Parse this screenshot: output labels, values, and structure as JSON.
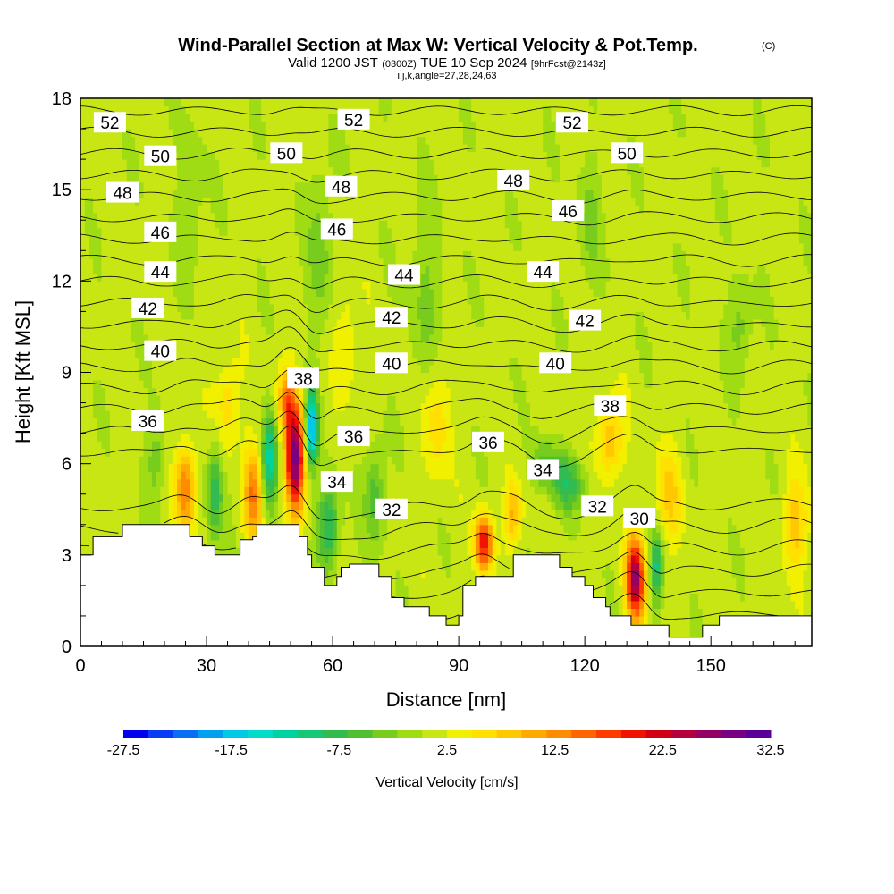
{
  "header": {
    "title": "Wind-Parallel Section at Max W: Vertical Velocity & Pot.Temp.",
    "copyright": "(C)",
    "valid_prefix": "Valid 1200 JST",
    "valid_z": "(0300Z)",
    "valid_date": "TUE 10 Sep 2024",
    "forecast": "[9hrFcst@2143z]",
    "indices": "i,j,k,angle=27,28,24,63"
  },
  "chart_data": {
    "type": "heatmap",
    "xlabel": "Distance [nm]",
    "ylabel": "Height [Kft MSL]",
    "xlim": [
      0,
      174
    ],
    "ylim": [
      0,
      18
    ],
    "x_ticks": [
      0,
      30,
      60,
      90,
      120,
      150
    ],
    "y_ticks": [
      0,
      3,
      6,
      9,
      12,
      15,
      18
    ],
    "x_tick_labels": [
      "0",
      "30",
      "60",
      "90",
      "120",
      "150"
    ],
    "y_tick_labels": [
      "0",
      "3",
      "6",
      "9",
      "12",
      "15",
      "18"
    ],
    "colorbar": {
      "title": "Vertical Velocity [cm/s]",
      "min": -27.5,
      "max": 32.5,
      "step": 2.5,
      "labels": [
        "-27.5",
        "-17.5",
        "-7.5",
        "2.5",
        "12.5",
        "22.5",
        "32.5"
      ],
      "colors": [
        "#0000ee",
        "#0a3cf5",
        "#0a6ef5",
        "#00a0f0",
        "#00c8e6",
        "#00dcc8",
        "#00d2a0",
        "#14c878",
        "#32bc50",
        "#50c032",
        "#78cc1e",
        "#a0dc14",
        "#c8e614",
        "#f0f000",
        "#ffe000",
        "#ffc800",
        "#ffaa00",
        "#ff8c00",
        "#ff6400",
        "#ff3c00",
        "#f01400",
        "#d20014",
        "#b4003c",
        "#960064",
        "#780082",
        "#5a0096"
      ]
    },
    "terrain": [
      [
        0,
        3
      ],
      [
        3,
        3
      ],
      [
        3,
        3.6
      ],
      [
        10,
        3.6
      ],
      [
        10,
        4
      ],
      [
        26,
        4
      ],
      [
        26,
        3.6
      ],
      [
        29,
        3.6
      ],
      [
        29,
        3.3
      ],
      [
        32,
        3.3
      ],
      [
        32,
        3
      ],
      [
        38,
        3
      ],
      [
        38,
        3.5
      ],
      [
        41,
        3.5
      ],
      [
        41,
        3.6
      ],
      [
        42,
        3.6
      ],
      [
        42,
        4
      ],
      [
        52,
        4
      ],
      [
        52,
        3.6
      ],
      [
        54,
        3.6
      ],
      [
        54,
        3
      ],
      [
        55,
        3
      ],
      [
        55,
        2.6
      ],
      [
        58,
        2.6
      ],
      [
        58,
        2
      ],
      [
        61,
        2
      ],
      [
        61,
        2.3
      ],
      [
        62,
        2.3
      ],
      [
        62,
        2.6
      ],
      [
        64,
        2.6
      ],
      [
        64,
        2.7
      ],
      [
        71,
        2.7
      ],
      [
        71,
        2.3
      ],
      [
        74,
        2.3
      ],
      [
        74,
        1.6
      ],
      [
        77,
        1.6
      ],
      [
        77,
        1.3
      ],
      [
        83,
        1.3
      ],
      [
        83,
        1
      ],
      [
        87,
        1
      ],
      [
        87,
        0.7
      ],
      [
        90,
        0.7
      ],
      [
        90,
        1
      ],
      [
        91,
        1
      ],
      [
        91,
        2
      ],
      [
        94,
        2
      ],
      [
        94,
        2.3
      ],
      [
        103,
        2.3
      ],
      [
        103,
        3
      ],
      [
        114,
        3
      ],
      [
        114,
        2.6
      ],
      [
        117,
        2.6
      ],
      [
        117,
        2.3
      ],
      [
        120,
        2.3
      ],
      [
        120,
        2
      ],
      [
        122,
        2
      ],
      [
        122,
        1.6
      ],
      [
        125,
        1.6
      ],
      [
        125,
        1.3
      ],
      [
        126,
        1.3
      ],
      [
        126,
        1
      ],
      [
        131,
        1
      ],
      [
        131,
        0.7
      ],
      [
        140,
        0.7
      ],
      [
        140,
        0.3
      ],
      [
        148,
        0.3
      ],
      [
        148,
        0.7
      ],
      [
        152,
        0.7
      ],
      [
        152,
        1
      ],
      [
        174,
        1
      ]
    ],
    "isentrope_levels": [
      30,
      31,
      32,
      33,
      34,
      35,
      36,
      37,
      38,
      39,
      40,
      41,
      42,
      43,
      44,
      45,
      46,
      47,
      48,
      49,
      50,
      51,
      52,
      53
    ],
    "isentrope_labels": [
      {
        "value": 52,
        "x": 7,
        "y": 17.2
      },
      {
        "value": 52,
        "x": 65,
        "y": 17.3
      },
      {
        "value": 52,
        "x": 117,
        "y": 17.2
      },
      {
        "value": 50,
        "x": 19,
        "y": 16.1
      },
      {
        "value": 50,
        "x": 49,
        "y": 16.2
      },
      {
        "value": 50,
        "x": 130,
        "y": 16.2
      },
      {
        "value": 48,
        "x": 10,
        "y": 14.9
      },
      {
        "value": 48,
        "x": 62,
        "y": 15.1
      },
      {
        "value": 48,
        "x": 103,
        "y": 15.3
      },
      {
        "value": 46,
        "x": 19,
        "y": 13.6
      },
      {
        "value": 46,
        "x": 61,
        "y": 13.7
      },
      {
        "value": 46,
        "x": 116,
        "y": 14.3
      },
      {
        "value": 44,
        "x": 19,
        "y": 12.3
      },
      {
        "value": 44,
        "x": 77,
        "y": 12.2
      },
      {
        "value": 44,
        "x": 110,
        "y": 12.3
      },
      {
        "value": 42,
        "x": 16,
        "y": 11.1
      },
      {
        "value": 42,
        "x": 74,
        "y": 10.8
      },
      {
        "value": 42,
        "x": 120,
        "y": 10.7
      },
      {
        "value": 40,
        "x": 19,
        "y": 9.7
      },
      {
        "value": 40,
        "x": 74,
        "y": 9.3
      },
      {
        "value": 40,
        "x": 113,
        "y": 9.3
      },
      {
        "value": 38,
        "x": 53,
        "y": 8.8
      },
      {
        "value": 38,
        "x": 126,
        "y": 7.9
      },
      {
        "value": 36,
        "x": 16,
        "y": 7.4
      },
      {
        "value": 36,
        "x": 65,
        "y": 6.9
      },
      {
        "value": 36,
        "x": 97,
        "y": 6.7
      },
      {
        "value": 34,
        "x": 61,
        "y": 5.4
      },
      {
        "value": 34,
        "x": 110,
        "y": 5.8
      },
      {
        "value": 32,
        "x": 74,
        "y": 4.5
      },
      {
        "value": 32,
        "x": 123,
        "y": 4.6
      },
      {
        "value": 30,
        "x": 133,
        "y": 4.2
      }
    ],
    "updrafts": [
      {
        "x": 25,
        "y": 5.2,
        "w": 14,
        "sx": 2.5,
        "sy": 1.4
      },
      {
        "x": 41,
        "y": 5.0,
        "w": 14,
        "sx": 2.0,
        "sy": 1.5
      },
      {
        "x": 51,
        "y": 6.2,
        "w": 30,
        "sx": 2.2,
        "sy": 1.8
      },
      {
        "x": 49,
        "y": 8.2,
        "w": 12,
        "sx": 2.0,
        "sy": 1.0
      },
      {
        "x": 96,
        "y": 3.4,
        "w": 22,
        "sx": 2.0,
        "sy": 0.9
      },
      {
        "x": 103,
        "y": 4.4,
        "w": 10,
        "sx": 2.0,
        "sy": 1.0
      },
      {
        "x": 132,
        "y": 2.2,
        "w": 28,
        "sx": 2.2,
        "sy": 1.3
      },
      {
        "x": 126,
        "y": 6.8,
        "w": 9,
        "sx": 3.0,
        "sy": 1.2
      },
      {
        "x": 140,
        "y": 5.0,
        "w": 7,
        "sx": 3.0,
        "sy": 1.5
      },
      {
        "x": 170,
        "y": 4.0,
        "w": 8,
        "sx": 3.0,
        "sy": 1.5
      },
      {
        "x": 35,
        "y": 8.0,
        "w": 6,
        "sx": 3.0,
        "sy": 1.5
      },
      {
        "x": 85,
        "y": 7.5,
        "w": 6,
        "sx": 3.0,
        "sy": 2.0
      },
      {
        "x": 63,
        "y": 10,
        "w": 4,
        "sx": 3.0,
        "sy": 2.0
      }
    ],
    "downdrafts": [
      {
        "x": 32,
        "y": 5.0,
        "w": -10,
        "sx": 2.0,
        "sy": 1.6
      },
      {
        "x": 45,
        "y": 6.2,
        "w": -14,
        "sx": 1.8,
        "sy": 1.5
      },
      {
        "x": 55,
        "y": 7.2,
        "w": -22,
        "sx": 1.5,
        "sy": 1.2
      },
      {
        "x": 59,
        "y": 4.0,
        "w": -12,
        "sx": 2.5,
        "sy": 1.4
      },
      {
        "x": 70,
        "y": 5.0,
        "w": -8,
        "sx": 2.5,
        "sy": 1.6
      },
      {
        "x": 116,
        "y": 5.4,
        "w": -10,
        "sx": 4.0,
        "sy": 0.9
      },
      {
        "x": 137,
        "y": 2.6,
        "w": -12,
        "sx": 1.5,
        "sy": 1.2
      },
      {
        "x": 110,
        "y": 6.0,
        "w": -7,
        "sx": 3.0,
        "sy": 0.8
      },
      {
        "x": 18,
        "y": 6.2,
        "w": -5,
        "sx": 2.5,
        "sy": 1.5
      },
      {
        "x": 57,
        "y": 13,
        "w": -5,
        "sx": 3.0,
        "sy": 3.0
      },
      {
        "x": 26,
        "y": 14.5,
        "w": -4,
        "sx": 3.0,
        "sy": 2.5
      },
      {
        "x": 157,
        "y": 10.5,
        "w": -5,
        "sx": 3.0,
        "sy": 1.5
      },
      {
        "x": 121,
        "y": 14,
        "w": -4,
        "sx": 3.0,
        "sy": 2.0
      },
      {
        "x": 82,
        "y": 11.5,
        "w": -4,
        "sx": 4.0,
        "sy": 3.0
      }
    ]
  }
}
